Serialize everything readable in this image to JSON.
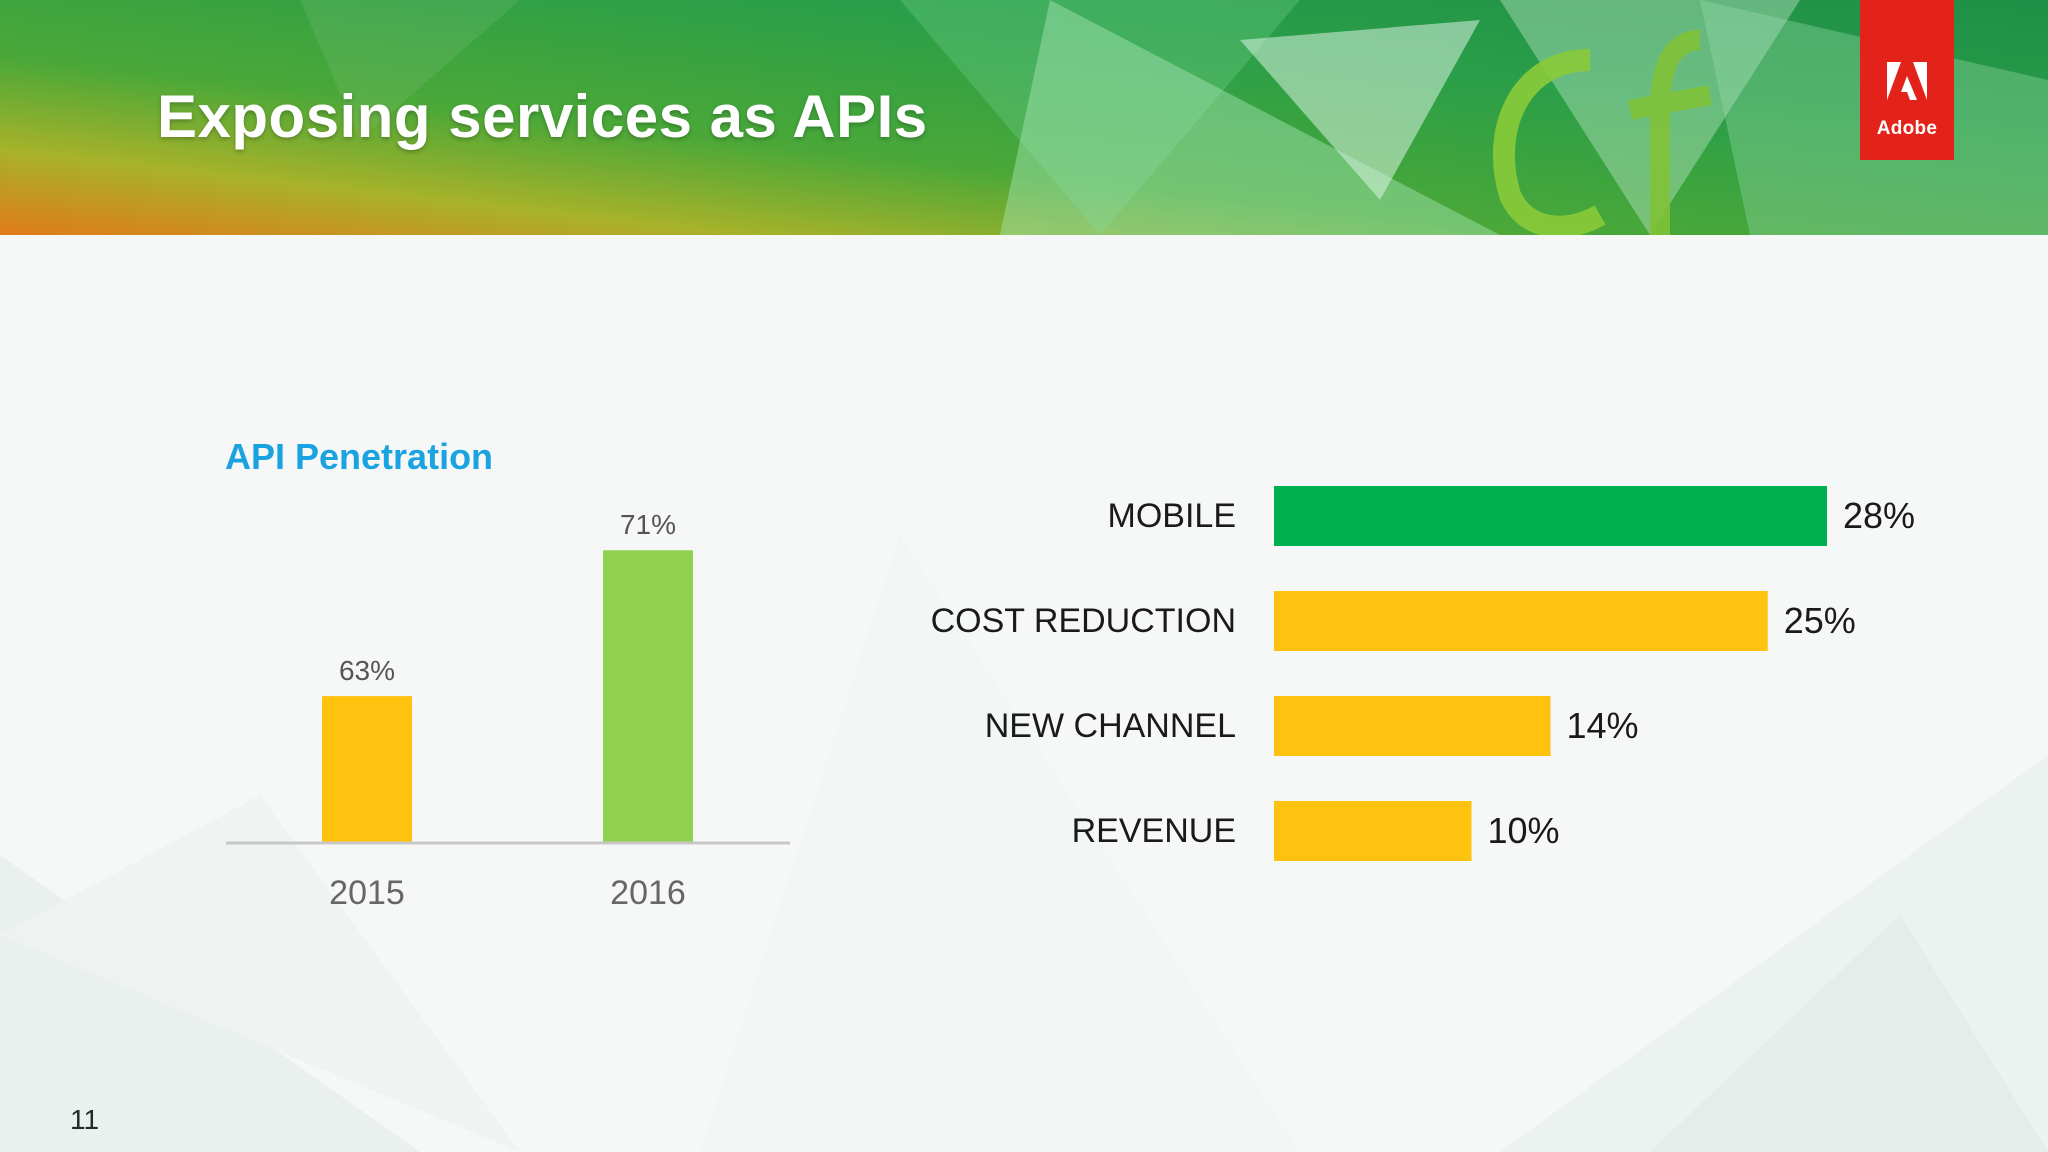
{
  "slide": {
    "title": "Exposing services as APIs",
    "page_number": "11",
    "logo_text": "Adobe"
  },
  "colors": {
    "banner_green": "#2ea84a",
    "banner_orange": "#e07a1a",
    "adobe_red": "#e3231a",
    "title_blue": "#1aa3e0",
    "bar_gold": "#ffc20e",
    "bar_light_green": "#92d050",
    "bar_green": "#00b050"
  },
  "chart_data": [
    {
      "type": "bar",
      "title": "API Penetration",
      "categories": [
        "2015",
        "2016"
      ],
      "values": [
        63,
        71
      ],
      "value_labels": [
        "63%",
        "71%"
      ],
      "colors": [
        "#ffc20e",
        "#92d050"
      ],
      "ylim": [
        55,
        72
      ],
      "xlabel": "",
      "ylabel": ""
    },
    {
      "type": "bar",
      "orientation": "horizontal",
      "title": "",
      "categories": [
        "MOBILE",
        "COST REDUCTION",
        "NEW CHANNEL",
        "REVENUE"
      ],
      "values": [
        28,
        25,
        14,
        10
      ],
      "value_labels": [
        "28%",
        "25%",
        "14%",
        "10%"
      ],
      "colors": [
        "#00b050",
        "#ffc20e",
        "#ffc20e",
        "#ffc20e"
      ],
      "xlim": [
        0,
        30
      ]
    }
  ]
}
